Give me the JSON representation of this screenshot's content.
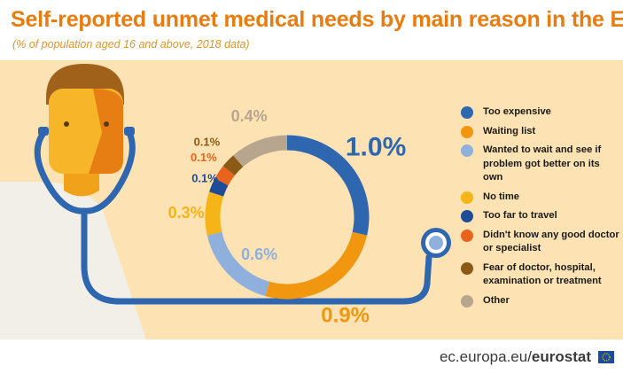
{
  "title": "Self-reported unmet medical needs by main reason in the EU",
  "subtitle": "(% of population aged 16 and above, 2018 data)",
  "footer": {
    "domain": "ec.europa.eu/",
    "brand": "eurostat"
  },
  "colors": {
    "background_panel": "#fde3b3",
    "accent": "#e87c0e",
    "stethoscope": "#2e67b0"
  },
  "chart_data": {
    "type": "pie",
    "donut": true,
    "title": "Self-reported unmet medical needs by main reason in the EU",
    "unit": "% of population aged 16 and above",
    "year": 2018,
    "legend_position": "right",
    "slices": [
      {
        "name": "Too expensive",
        "value": 1.0,
        "label": "1.0%",
        "color": "#2e67b0"
      },
      {
        "name": "Waiting list",
        "value": 0.9,
        "label": "0.9%",
        "color": "#f0960f"
      },
      {
        "name": "Wanted to wait and see if problem got better on its own",
        "value": 0.6,
        "label": "0.6%",
        "color": "#8fb0dc"
      },
      {
        "name": "No time",
        "value": 0.3,
        "label": "0.3%",
        "color": "#f5b418"
      },
      {
        "name": "Too far to travel",
        "value": 0.1,
        "label": "0.1%",
        "color": "#1f4c96"
      },
      {
        "name": "Didn't know any good doctor or specialist",
        "value": 0.1,
        "label": "0.1%",
        "color": "#e8641c"
      },
      {
        "name": "Fear of doctor, hospital, examination or treatment",
        "value": 0.1,
        "label": "0.1%",
        "color": "#8a5a16"
      },
      {
        "name": "Other",
        "value": 0.4,
        "label": "0.4%",
        "color": "#b8a58e"
      }
    ]
  }
}
